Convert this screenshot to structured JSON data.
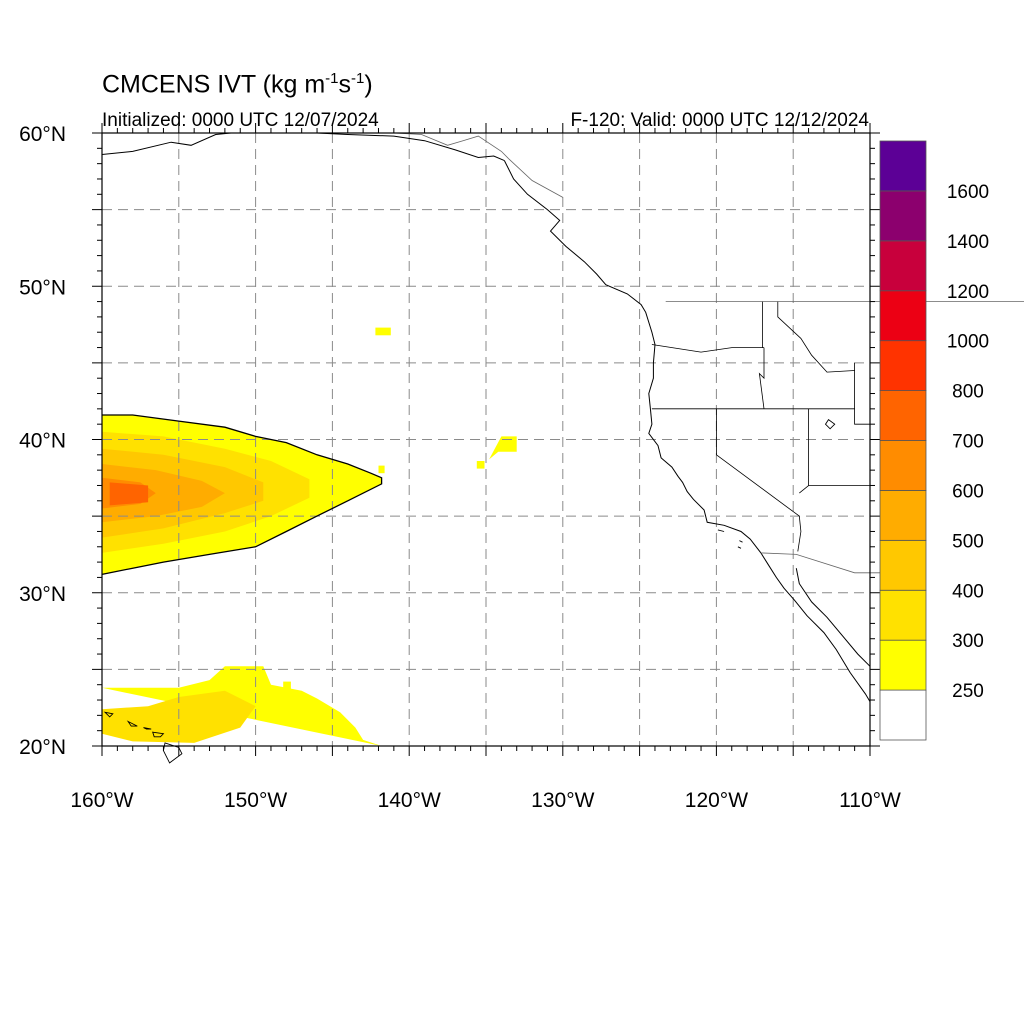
{
  "title": {
    "prefix": "CMCENS IVT (kg m",
    "exp1": "-1",
    "mid": "s",
    "exp2": "-1",
    "suffix": ")"
  },
  "subtitle_left": "Initialized: 0000 UTC 12/07/2024",
  "subtitle_right": "F-120: Valid: 0000 UTC 12/12/2024",
  "chart_data": {
    "type": "heatmap",
    "map_extent": {
      "lon": [
        -160,
        -110
      ],
      "lat": [
        20,
        60
      ]
    },
    "grid": true,
    "grid_lon": [
      -155,
      -150,
      -145,
      -140,
      -135,
      -130,
      -125,
      -120,
      -115
    ],
    "grid_lat": [
      25,
      30,
      35,
      40,
      45,
      50,
      55
    ],
    "x_ticks": [
      {
        "lon": -160,
        "label": "160°W"
      },
      {
        "lon": -150,
        "label": "150°W"
      },
      {
        "lon": -140,
        "label": "140°W"
      },
      {
        "lon": -130,
        "label": "130°W"
      },
      {
        "lon": -120,
        "label": "120°W"
      },
      {
        "lon": -110,
        "label": "110°W"
      }
    ],
    "y_ticks": [
      {
        "lat": 60,
        "label": "60°N"
      },
      {
        "lat": 50,
        "label": "50°N"
      },
      {
        "lat": 40,
        "label": "40°N"
      },
      {
        "lat": 30,
        "label": "30°N"
      },
      {
        "lat": 20,
        "label": "20°N"
      }
    ],
    "colorbar": {
      "placement": "right",
      "colors": [
        "#ffffff",
        "#ffff00",
        "#ffe100",
        "#ffc800",
        "#ffac00",
        "#ff8c00",
        "#ff6400",
        "#ff3300",
        "#ec0014",
        "#c8003c",
        "#8c006e",
        "#5c0096"
      ],
      "labels": [
        "250",
        "300",
        "400",
        "500",
        "600",
        "700",
        "800",
        "1000",
        "1200",
        "1400",
        "1600"
      ]
    },
    "ivt_regions": [
      {
        "level": 1,
        "polygon": [
          [
            -160,
            41.6
          ],
          [
            -158,
            41.6
          ],
          [
            -155,
            41.2
          ],
          [
            -152,
            40.8
          ],
          [
            -150,
            40.2
          ],
          [
            -148,
            39.8
          ],
          [
            -146,
            39
          ],
          [
            -144,
            38.4
          ],
          [
            -142.5,
            37.8
          ],
          [
            -141.8,
            37.5
          ],
          [
            -141.8,
            37.1
          ],
          [
            -144,
            36
          ],
          [
            -146,
            35
          ],
          [
            -148,
            34
          ],
          [
            -150,
            33
          ],
          [
            -153,
            32.5
          ],
          [
            -156,
            32
          ],
          [
            -158,
            31.6
          ],
          [
            -160,
            31.2
          ]
        ]
      },
      {
        "level": 2,
        "polygon": [
          [
            -160,
            40.5
          ],
          [
            -156,
            40.2
          ],
          [
            -152,
            39.4
          ],
          [
            -149,
            38.6
          ],
          [
            -146.5,
            37.4
          ],
          [
            -146.5,
            36.2
          ],
          [
            -149,
            35
          ],
          [
            -152,
            34
          ],
          [
            -156,
            33.2
          ],
          [
            -160,
            32.6
          ]
        ]
      },
      {
        "level": 3,
        "polygon": [
          [
            -160,
            39.4
          ],
          [
            -156,
            39
          ],
          [
            -152,
            38.2
          ],
          [
            -149.5,
            37.2
          ],
          [
            -149.5,
            36
          ],
          [
            -152,
            35.2
          ],
          [
            -156,
            34.2
          ],
          [
            -160,
            33.6
          ]
        ]
      },
      {
        "level": 4,
        "polygon": [
          [
            -160,
            38.4
          ],
          [
            -156.5,
            38
          ],
          [
            -153.5,
            37.3
          ],
          [
            -152,
            36.5
          ],
          [
            -153.5,
            35.6
          ],
          [
            -156.5,
            35
          ],
          [
            -160,
            34.6
          ]
        ]
      },
      {
        "level": 5,
        "polygon": [
          [
            -160,
            37.5
          ],
          [
            -157.5,
            37.2
          ],
          [
            -156.5,
            36.5
          ],
          [
            -157.5,
            35.8
          ],
          [
            -160,
            35.5
          ]
        ]
      },
      {
        "level": 6,
        "polygon": [
          [
            -159.5,
            37.2
          ],
          [
            -157,
            37
          ],
          [
            -157,
            35.9
          ],
          [
            -159.5,
            35.7
          ]
        ]
      },
      {
        "level": 1,
        "polygon": [
          [
            -160,
            23.8
          ],
          [
            -155,
            23.8
          ],
          [
            -153,
            24.3
          ],
          [
            -152,
            25.2
          ],
          [
            -149.5,
            25.2
          ],
          [
            -149,
            24
          ],
          [
            -147,
            23.6
          ],
          [
            -146,
            23.1
          ],
          [
            -144.5,
            22.2
          ],
          [
            -143.5,
            21.2
          ],
          [
            -143,
            20.4
          ],
          [
            -141.8,
            20
          ]
        ]
      },
      {
        "level": 2,
        "polygon": [
          [
            -160,
            22.4
          ],
          [
            -157,
            22.6
          ],
          [
            -155,
            23.2
          ],
          [
            -152,
            23.6
          ],
          [
            -150,
            22.6
          ],
          [
            -151,
            21.2
          ],
          [
            -154,
            20.2
          ],
          [
            -158,
            20.3
          ],
          [
            -160,
            20.8
          ]
        ]
      },
      {
        "level": 1,
        "polygon": [
          [
            -142.2,
            47.3
          ],
          [
            -141.2,
            47.3
          ],
          [
            -141.2,
            46.8
          ],
          [
            -142.2,
            46.8
          ]
        ]
      },
      {
        "level": 1,
        "polygon": [
          [
            -142,
            38.3
          ],
          [
            -141.6,
            38.3
          ],
          [
            -141.6,
            37.8
          ],
          [
            -142,
            37.8
          ]
        ]
      },
      {
        "level": 1,
        "polygon": [
          [
            -134,
            40.2
          ],
          [
            -133,
            40.2
          ],
          [
            -133,
            39.2
          ],
          [
            -134.2,
            39.2
          ],
          [
            -134.8,
            38.7
          ],
          [
            -135.3,
            38.2
          ],
          [
            -134.8,
            38.7
          ]
        ]
      },
      {
        "level": 1,
        "polygon": [
          [
            -135.6,
            38.6
          ],
          [
            -135.1,
            38.6
          ],
          [
            -135.1,
            38.1
          ],
          [
            -135.6,
            38.1
          ]
        ]
      },
      {
        "level": 1,
        "polygon": [
          [
            -148.2,
            24.2
          ],
          [
            -147.7,
            24.2
          ],
          [
            -147.7,
            23.7
          ],
          [
            -148.2,
            23.7
          ]
        ]
      }
    ],
    "contour_lon_lat": [
      [
        -160,
        41.6
      ],
      [
        -158,
        41.6
      ],
      [
        -155,
        41.2
      ],
      [
        -152,
        40.8
      ],
      [
        -150,
        40.2
      ],
      [
        -148,
        39.8
      ],
      [
        -146,
        39
      ],
      [
        -144,
        38.4
      ],
      [
        -142.5,
        37.8
      ],
      [
        -141.8,
        37.5
      ],
      [
        -141.8,
        37.1
      ],
      [
        -144,
        36
      ],
      [
        -146,
        35
      ],
      [
        -148,
        34
      ],
      [
        -150,
        33
      ],
      [
        -153,
        32.5
      ],
      [
        -156,
        32
      ],
      [
        -158,
        31.6
      ],
      [
        -160,
        31.2
      ]
    ],
    "coastline_lon_lat": [
      [
        -133.8,
        58.2
      ],
      [
        -133.2,
        57
      ],
      [
        -132.3,
        56
      ],
      [
        -131,
        55
      ],
      [
        -130.2,
        54.3
      ],
      [
        -130.8,
        53.6
      ],
      [
        -129.8,
        52.6
      ],
      [
        -128.6,
        51.6
      ],
      [
        -127.8,
        50.8
      ],
      [
        -127.2,
        50.1
      ],
      [
        -125.8,
        49.5
      ],
      [
        -124.9,
        48.8
      ],
      [
        -124.6,
        48.3
      ],
      [
        -124.2,
        47
      ],
      [
        -124,
        46.2
      ],
      [
        -124.1,
        45
      ],
      [
        -124.1,
        44
      ],
      [
        -124.4,
        43
      ],
      [
        -124.3,
        42
      ],
      [
        -124.2,
        41
      ],
      [
        -124.4,
        40.4
      ],
      [
        -123.8,
        39.6
      ],
      [
        -123.6,
        38.8
      ],
      [
        -122.9,
        38.2
      ],
      [
        -122.5,
        37.6
      ],
      [
        -122.2,
        37.2
      ],
      [
        -121.9,
        36.6
      ],
      [
        -121.5,
        36.1
      ],
      [
        -120.8,
        35.4
      ],
      [
        -120.6,
        34.6
      ],
      [
        -119.5,
        34.4
      ],
      [
        -118.4,
        34
      ],
      [
        -117.8,
        33.5
      ],
      [
        -117.1,
        32.6
      ],
      [
        -116.6,
        31.8
      ],
      [
        -116.1,
        31
      ],
      [
        -115.6,
        30.3
      ],
      [
        -114.9,
        29.5
      ],
      [
        -114.1,
        28.5
      ],
      [
        -113,
        27.4
      ],
      [
        -112.2,
        26.3
      ],
      [
        -111.3,
        24.8
      ],
      [
        -110.3,
        23.4
      ],
      [
        -110,
        22.9
      ]
    ],
    "gulf_lon_lat": [
      [
        -114.8,
        31.6
      ],
      [
        -114.6,
        30.6
      ],
      [
        -113.8,
        29.4
      ],
      [
        -112.8,
        28.4
      ],
      [
        -111.8,
        27.2
      ],
      [
        -110.8,
        26
      ],
      [
        -110,
        25.2
      ]
    ],
    "alaska_lon_lat": [
      [
        -160,
        58.6
      ],
      [
        -158,
        58.8
      ],
      [
        -155.5,
        59.4
      ],
      [
        -154.2,
        59.2
      ],
      [
        -152.6,
        59.9
      ],
      [
        -151.6,
        60
      ]
    ],
    "alaska_north_lon_lat": [
      [
        -146,
        60
      ],
      [
        -144,
        59.9
      ],
      [
        -141,
        59.8
      ],
      [
        -139,
        59.5
      ],
      [
        -137,
        58.9
      ],
      [
        -135.5,
        58.4
      ],
      [
        -134.5,
        58.5
      ],
      [
        -133.8,
        58.2
      ]
    ],
    "international_border_lon_lat": [
      [
        -123.3,
        49
      ],
      [
        -95,
        49
      ]
    ],
    "ak_bc_border_lon_lat": [
      [
        -141,
        60
      ],
      [
        -139.2,
        59.9
      ],
      [
        -137.5,
        59.2
      ],
      [
        -136.5,
        59.5
      ],
      [
        -135.5,
        59.8
      ],
      [
        -134,
        58.8
      ],
      [
        -133.5,
        58.3
      ],
      [
        -132,
        56.9
      ],
      [
        -130,
        55.8
      ]
    ],
    "mexico_border_lon_lat": [
      [
        -117.1,
        32.6
      ],
      [
        -114.8,
        32.5
      ],
      [
        -111,
        31.3
      ],
      [
        -108.2,
        31.3
      ]
    ],
    "state_borders": [
      [
        [
          -124.2,
          46.2
        ],
        [
          -121,
          45.7
        ],
        [
          -119,
          46
        ],
        [
          -116.9,
          46
        ]
      ],
      [
        [
          -116.9,
          46
        ],
        [
          -116.9,
          44
        ],
        [
          -117.2,
          44.3
        ],
        [
          -116.9,
          42
        ]
      ],
      [
        [
          -124.2,
          42
        ],
        [
          -111,
          42
        ]
      ],
      [
        [
          -120,
          42
        ],
        [
          -120,
          39
        ],
        [
          -114.6,
          35
        ]
      ],
      [
        [
          -114.6,
          35
        ],
        [
          -114.5,
          34
        ],
        [
          -114.7,
          32.7
        ]
      ],
      [
        [
          -117,
          49
        ],
        [
          -117,
          46
        ]
      ],
      [
        [
          -116,
          49
        ],
        [
          -116,
          48
        ],
        [
          -114.5,
          46.6
        ],
        [
          -113.8,
          45.5
        ],
        [
          -112.8,
          44.4
        ],
        [
          -111,
          44.5
        ]
      ],
      [
        [
          -114,
          42
        ],
        [
          -114,
          37
        ],
        [
          -114.6,
          36.5
        ]
      ],
      [
        [
          -114,
          37
        ],
        [
          -110,
          37
        ]
      ],
      [
        [
          -111,
          45
        ],
        [
          -111,
          41
        ],
        [
          -110,
          41
        ]
      ]
    ],
    "islands_lon_lat": [
      [
        [
          -155.9,
          20.2
        ],
        [
          -155,
          19.9
        ],
        [
          -154.8,
          19.5
        ],
        [
          -155.6,
          18.9
        ],
        [
          -156,
          19.7
        ]
      ],
      [
        [
          -156.7,
          20.9
        ],
        [
          -156,
          20.8
        ],
        [
          -156.2,
          20.6
        ],
        [
          -156.6,
          20.6
        ]
      ],
      [
        [
          -158.3,
          21.6
        ],
        [
          -157.7,
          21.3
        ],
        [
          -158.1,
          21.3
        ]
      ],
      [
        [
          -159.8,
          22.2
        ],
        [
          -159.3,
          22.1
        ],
        [
          -159.5,
          21.9
        ]
      ],
      [
        [
          -157.3,
          21.2
        ],
        [
          -156.8,
          21.1
        ],
        [
          -157.1,
          21.1
        ]
      ],
      [
        [
          -118.5,
          33.4
        ],
        [
          -118.3,
          33.3
        ]
      ],
      [
        [
          -118.6,
          33.0
        ],
        [
          -118.4,
          32.9
        ]
      ],
      [
        [
          -119.9,
          34.1
        ],
        [
          -119.5,
          34
        ]
      ],
      [
        [
          -112.7,
          41.3
        ],
        [
          -112.3,
          41
        ],
        [
          -112.6,
          40.7
        ],
        [
          -112.9,
          41
        ]
      ]
    ]
  }
}
